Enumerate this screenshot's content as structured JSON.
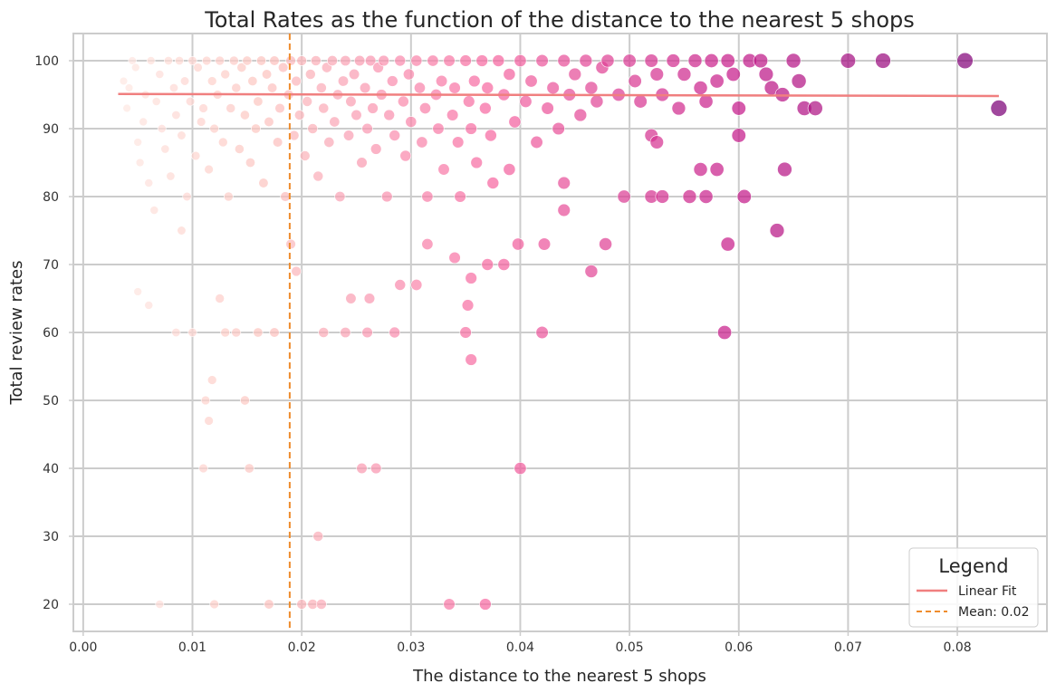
{
  "chart_data": {
    "type": "scatter",
    "title": "Total Rates as the function of the distance to the nearest 5 shops",
    "xlabel": "The distance to the nearest 5 shops",
    "ylabel": "Total review rates",
    "xlim": [
      -0.0009,
      0.0882
    ],
    "ylim": [
      16,
      104
    ],
    "xticks": [
      "0.00",
      "0.01",
      "0.02",
      "0.03",
      "0.04",
      "0.05",
      "0.06",
      "0.07",
      "0.08"
    ],
    "yticks": [
      "20",
      "30",
      "40",
      "50",
      "60",
      "70",
      "80",
      "90",
      "100"
    ],
    "grid": true,
    "colormap": [
      "#fff5f0",
      "#fcc5c0",
      "#f768a1",
      "#c51b8a",
      "#7a0177"
    ],
    "legend": {
      "title": "Legend",
      "position": "lower-right",
      "entries": [
        {
          "label": "Linear Fit",
          "color": "#f07f7f",
          "style": "solid"
        },
        {
          "label": "Mean: 0.02",
          "color": "#ef8c2c",
          "style": "dashed"
        }
      ]
    },
    "linear_fit": {
      "x": [
        0.0032,
        0.0838
      ],
      "y": [
        95.1,
        94.8
      ],
      "color": "#f07f7f"
    },
    "mean_line": {
      "x": 0.0189,
      "color": "#ef8c2c"
    },
    "points": [
      [
        0.0037,
        97
      ],
      [
        0.004,
        93
      ],
      [
        0.0042,
        96
      ],
      [
        0.0045,
        100
      ],
      [
        0.0048,
        99
      ],
      [
        0.005,
        88
      ],
      [
        0.0052,
        85
      ],
      [
        0.0055,
        91
      ],
      [
        0.0057,
        95
      ],
      [
        0.006,
        82
      ],
      [
        0.0062,
        100
      ],
      [
        0.0065,
        78
      ],
      [
        0.0067,
        94
      ],
      [
        0.007,
        98
      ],
      [
        0.0072,
        90
      ],
      [
        0.0075,
        87
      ],
      [
        0.0078,
        100
      ],
      [
        0.008,
        83
      ],
      [
        0.0083,
        96
      ],
      [
        0.0085,
        92
      ],
      [
        0.0088,
        100
      ],
      [
        0.009,
        89
      ],
      [
        0.0093,
        97
      ],
      [
        0.0095,
        80
      ],
      [
        0.0098,
        94
      ],
      [
        0.01,
        100
      ],
      [
        0.0103,
        86
      ],
      [
        0.0105,
        99
      ],
      [
        0.0108,
        91
      ],
      [
        0.011,
        93
      ],
      [
        0.0113,
        100
      ],
      [
        0.0115,
        84
      ],
      [
        0.0118,
        97
      ],
      [
        0.012,
        90
      ],
      [
        0.0123,
        95
      ],
      [
        0.0125,
        100
      ],
      [
        0.0128,
        88
      ],
      [
        0.013,
        98
      ],
      [
        0.0133,
        80
      ],
      [
        0.0135,
        93
      ],
      [
        0.0138,
        100
      ],
      [
        0.014,
        96
      ],
      [
        0.0143,
        87
      ],
      [
        0.0145,
        99
      ],
      [
        0.0148,
        92
      ],
      [
        0.015,
        100
      ],
      [
        0.0153,
        85
      ],
      [
        0.0155,
        97
      ],
      [
        0.0158,
        90
      ],
      [
        0.016,
        94
      ],
      [
        0.0163,
        100
      ],
      [
        0.0165,
        82
      ],
      [
        0.0168,
        98
      ],
      [
        0.017,
        91
      ],
      [
        0.0173,
        96
      ],
      [
        0.0175,
        100
      ],
      [
        0.0178,
        88
      ],
      [
        0.018,
        93
      ],
      [
        0.0183,
        99
      ],
      [
        0.0185,
        80
      ],
      [
        0.0188,
        95
      ],
      [
        0.019,
        100
      ],
      [
        0.0193,
        89
      ],
      [
        0.0195,
        97
      ],
      [
        0.0198,
        92
      ],
      [
        0.02,
        100
      ],
      [
        0.0203,
        86
      ],
      [
        0.0205,
        94
      ],
      [
        0.0208,
        98
      ],
      [
        0.021,
        90
      ],
      [
        0.0213,
        100
      ],
      [
        0.0215,
        83
      ],
      [
        0.0218,
        96
      ],
      [
        0.022,
        93
      ],
      [
        0.0223,
        99
      ],
      [
        0.0225,
        88
      ],
      [
        0.0228,
        100
      ],
      [
        0.023,
        91
      ],
      [
        0.0233,
        95
      ],
      [
        0.0235,
        80
      ],
      [
        0.0238,
        97
      ],
      [
        0.024,
        100
      ],
      [
        0.0243,
        89
      ],
      [
        0.0245,
        94
      ],
      [
        0.0248,
        98
      ],
      [
        0.025,
        92
      ],
      [
        0.0253,
        100
      ],
      [
        0.0255,
        85
      ],
      [
        0.0258,
        96
      ],
      [
        0.026,
        90
      ],
      [
        0.0263,
        100
      ],
      [
        0.0265,
        93
      ],
      [
        0.0268,
        87
      ],
      [
        0.027,
        99
      ],
      [
        0.0273,
        95
      ],
      [
        0.0275,
        100
      ],
      [
        0.0278,
        80
      ],
      [
        0.028,
        92
      ],
      [
        0.0283,
        97
      ],
      [
        0.0285,
        89
      ],
      [
        0.029,
        100
      ],
      [
        0.0293,
        94
      ],
      [
        0.0295,
        86
      ],
      [
        0.0298,
        98
      ],
      [
        0.03,
        91
      ],
      [
        0.0305,
        100
      ],
      [
        0.0308,
        96
      ],
      [
        0.031,
        88
      ],
      [
        0.0313,
        93
      ],
      [
        0.0315,
        80
      ],
      [
        0.032,
        100
      ],
      [
        0.0323,
        95
      ],
      [
        0.0325,
        90
      ],
      [
        0.0328,
        97
      ],
      [
        0.033,
        84
      ],
      [
        0.0335,
        100
      ],
      [
        0.0338,
        92
      ],
      [
        0.034,
        96
      ],
      [
        0.0343,
        88
      ],
      [
        0.0345,
        80
      ],
      [
        0.035,
        100
      ],
      [
        0.0353,
        94
      ],
      [
        0.0355,
        90
      ],
      [
        0.0358,
        97
      ],
      [
        0.036,
        85
      ],
      [
        0.0365,
        100
      ],
      [
        0.0368,
        93
      ],
      [
        0.037,
        96
      ],
      [
        0.0373,
        89
      ],
      [
        0.0375,
        82
      ],
      [
        0.038,
        100
      ],
      [
        0.0385,
        95
      ],
      [
        0.039,
        98
      ],
      [
        0.0395,
        91
      ],
      [
        0.04,
        100
      ],
      [
        0.0405,
        94
      ],
      [
        0.041,
        97
      ],
      [
        0.0415,
        88
      ],
      [
        0.042,
        100
      ],
      [
        0.0425,
        93
      ],
      [
        0.043,
        96
      ],
      [
        0.0435,
        90
      ],
      [
        0.044,
        100
      ],
      [
        0.0445,
        95
      ],
      [
        0.045,
        98
      ],
      [
        0.0455,
        92
      ],
      [
        0.046,
        100
      ],
      [
        0.0465,
        96
      ],
      [
        0.047,
        94
      ],
      [
        0.0475,
        99
      ],
      [
        0.048,
        100
      ],
      [
        0.049,
        95
      ],
      [
        0.05,
        100
      ],
      [
        0.0505,
        97
      ],
      [
        0.051,
        94
      ],
      [
        0.052,
        100
      ],
      [
        0.0525,
        98
      ],
      [
        0.053,
        95
      ],
      [
        0.054,
        100
      ],
      [
        0.0545,
        93
      ],
      [
        0.055,
        98
      ],
      [
        0.056,
        100
      ],
      [
        0.0565,
        96
      ],
      [
        0.057,
        94
      ],
      [
        0.0575,
        100
      ],
      [
        0.058,
        97
      ],
      [
        0.059,
        100
      ],
      [
        0.0595,
        98
      ],
      [
        0.06,
        93
      ],
      [
        0.061,
        100
      ],
      [
        0.062,
        100
      ],
      [
        0.0625,
        98
      ],
      [
        0.063,
        96
      ],
      [
        0.064,
        95
      ],
      [
        0.065,
        100
      ],
      [
        0.0655,
        97
      ],
      [
        0.066,
        93
      ],
      [
        0.067,
        93
      ],
      [
        0.07,
        100
      ],
      [
        0.0732,
        100
      ],
      [
        0.0807,
        100
      ],
      [
        0.0838,
        93
      ],
      [
        0.005,
        66
      ],
      [
        0.006,
        64
      ],
      [
        0.007,
        20
      ],
      [
        0.0085,
        60
      ],
      [
        0.009,
        75
      ],
      [
        0.01,
        60
      ],
      [
        0.011,
        40
      ],
      [
        0.0112,
        50
      ],
      [
        0.0115,
        47
      ],
      [
        0.0118,
        53
      ],
      [
        0.012,
        20
      ],
      [
        0.0125,
        65
      ],
      [
        0.013,
        60
      ],
      [
        0.014,
        60
      ],
      [
        0.0148,
        50
      ],
      [
        0.0152,
        40
      ],
      [
        0.016,
        60
      ],
      [
        0.017,
        20
      ],
      [
        0.0175,
        60
      ],
      [
        0.019,
        73
      ],
      [
        0.0195,
        69
      ],
      [
        0.02,
        20
      ],
      [
        0.021,
        20
      ],
      [
        0.0215,
        30
      ],
      [
        0.0218,
        20
      ],
      [
        0.022,
        60
      ],
      [
        0.024,
        60
      ],
      [
        0.0245,
        65
      ],
      [
        0.0255,
        40
      ],
      [
        0.026,
        60
      ],
      [
        0.0262,
        65
      ],
      [
        0.0268,
        40
      ],
      [
        0.0285,
        60
      ],
      [
        0.029,
        67
      ],
      [
        0.0305,
        67
      ],
      [
        0.0315,
        73
      ],
      [
        0.0335,
        20
      ],
      [
        0.034,
        71
      ],
      [
        0.035,
        60
      ],
      [
        0.0352,
        64
      ],
      [
        0.0355,
        56
      ],
      [
        0.0355,
        68
      ],
      [
        0.0368,
        20
      ],
      [
        0.037,
        70
      ],
      [
        0.0385,
        70
      ],
      [
        0.0398,
        73
      ],
      [
        0.04,
        40
      ],
      [
        0.042,
        60
      ],
      [
        0.0422,
        73
      ],
      [
        0.044,
        78
      ],
      [
        0.0465,
        69
      ],
      [
        0.0478,
        73
      ],
      [
        0.0495,
        80
      ],
      [
        0.052,
        80
      ],
      [
        0.053,
        80
      ],
      [
        0.0555,
        80
      ],
      [
        0.057,
        80
      ],
      [
        0.059,
        73
      ],
      [
        0.0605,
        80
      ],
      [
        0.0635,
        75
      ],
      [
        0.0587,
        60
      ],
      [
        0.0642,
        84
      ],
      [
        0.058,
        84
      ],
      [
        0.0565,
        84
      ],
      [
        0.044,
        82
      ],
      [
        0.039,
        84
      ],
      [
        0.052,
        89
      ],
      [
        0.0525,
        88
      ],
      [
        0.06,
        89
      ]
    ]
  }
}
